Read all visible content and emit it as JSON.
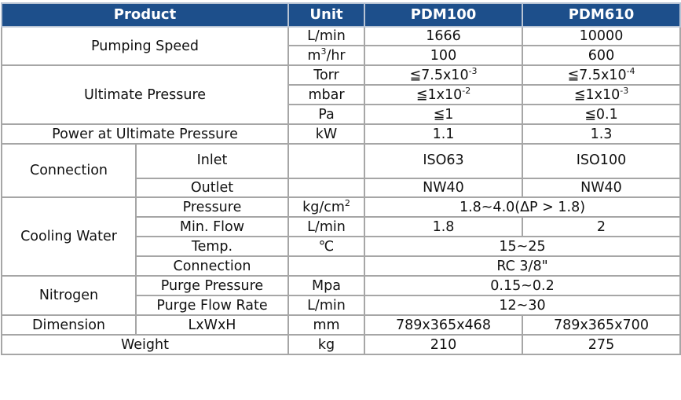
{
  "header": {
    "product": "Product",
    "unit": "Unit",
    "model_a": "PDM100",
    "model_b": "PDM610"
  },
  "pumping_speed": {
    "label": "Pumping Speed",
    "rows": [
      {
        "unit": "L/min",
        "a": "1666",
        "b": "10000"
      },
      {
        "unit_base": "m",
        "unit_sup": "3",
        "unit_tail": "/hr",
        "a": "100",
        "b": "600"
      }
    ]
  },
  "ultimate_pressure": {
    "label": "Ultimate Pressure",
    "rows": [
      {
        "unit": "Torr",
        "a_base": "≦7.5x10",
        "a_sup": "-3",
        "b_base": "≦7.5x10",
        "b_sup": "-4"
      },
      {
        "unit": "mbar",
        "a_base": "≦1x10",
        "a_sup": "-2",
        "b_base": "≦1x10",
        "b_sup": "-3"
      },
      {
        "unit": "Pa",
        "a": "≦1",
        "b": "≦0.1"
      }
    ]
  },
  "power": {
    "label": "Power at Ultimate Pressure",
    "unit": "kW",
    "a": "1.1",
    "b": "1.3"
  },
  "connection": {
    "label": "Connection",
    "rows": [
      {
        "sub": "Inlet",
        "unit": "",
        "a": "ISO63",
        "b": "ISO100"
      },
      {
        "sub": "Outlet",
        "unit": "",
        "a": "NW40",
        "b": "NW40"
      }
    ]
  },
  "cooling_water": {
    "label": "Cooling Water",
    "rows": [
      {
        "sub": "Pressure",
        "unit_base": "kg/cm",
        "unit_sup": "2",
        "value": "1.8~4.0(ΔP > 1.8)"
      },
      {
        "sub": "Min. Flow",
        "unit": "L/min",
        "a": "1.8",
        "b": "2"
      },
      {
        "sub": "Temp.",
        "unit": "℃",
        "value": "15~25"
      },
      {
        "sub": "Connection",
        "unit": "",
        "value": "RC 3/8\""
      }
    ]
  },
  "nitrogen": {
    "label": "Nitrogen",
    "rows": [
      {
        "sub": "Purge Pressure",
        "unit": "Mpa",
        "value": "0.15~0.2"
      },
      {
        "sub": "Purge Flow Rate",
        "unit": "L/min",
        "value": "12~30"
      }
    ]
  },
  "dimension": {
    "label": "Dimension",
    "sub": "LxWxH",
    "unit": "mm",
    "a": "789x365x468",
    "b": "789x365x700"
  },
  "weight": {
    "label": "Weight",
    "unit": "kg",
    "a": "210",
    "b": "275"
  },
  "colors": {
    "header_bg": "#1d4f8b",
    "header_text": "#ffffff",
    "grid": "#a6a6a6"
  }
}
